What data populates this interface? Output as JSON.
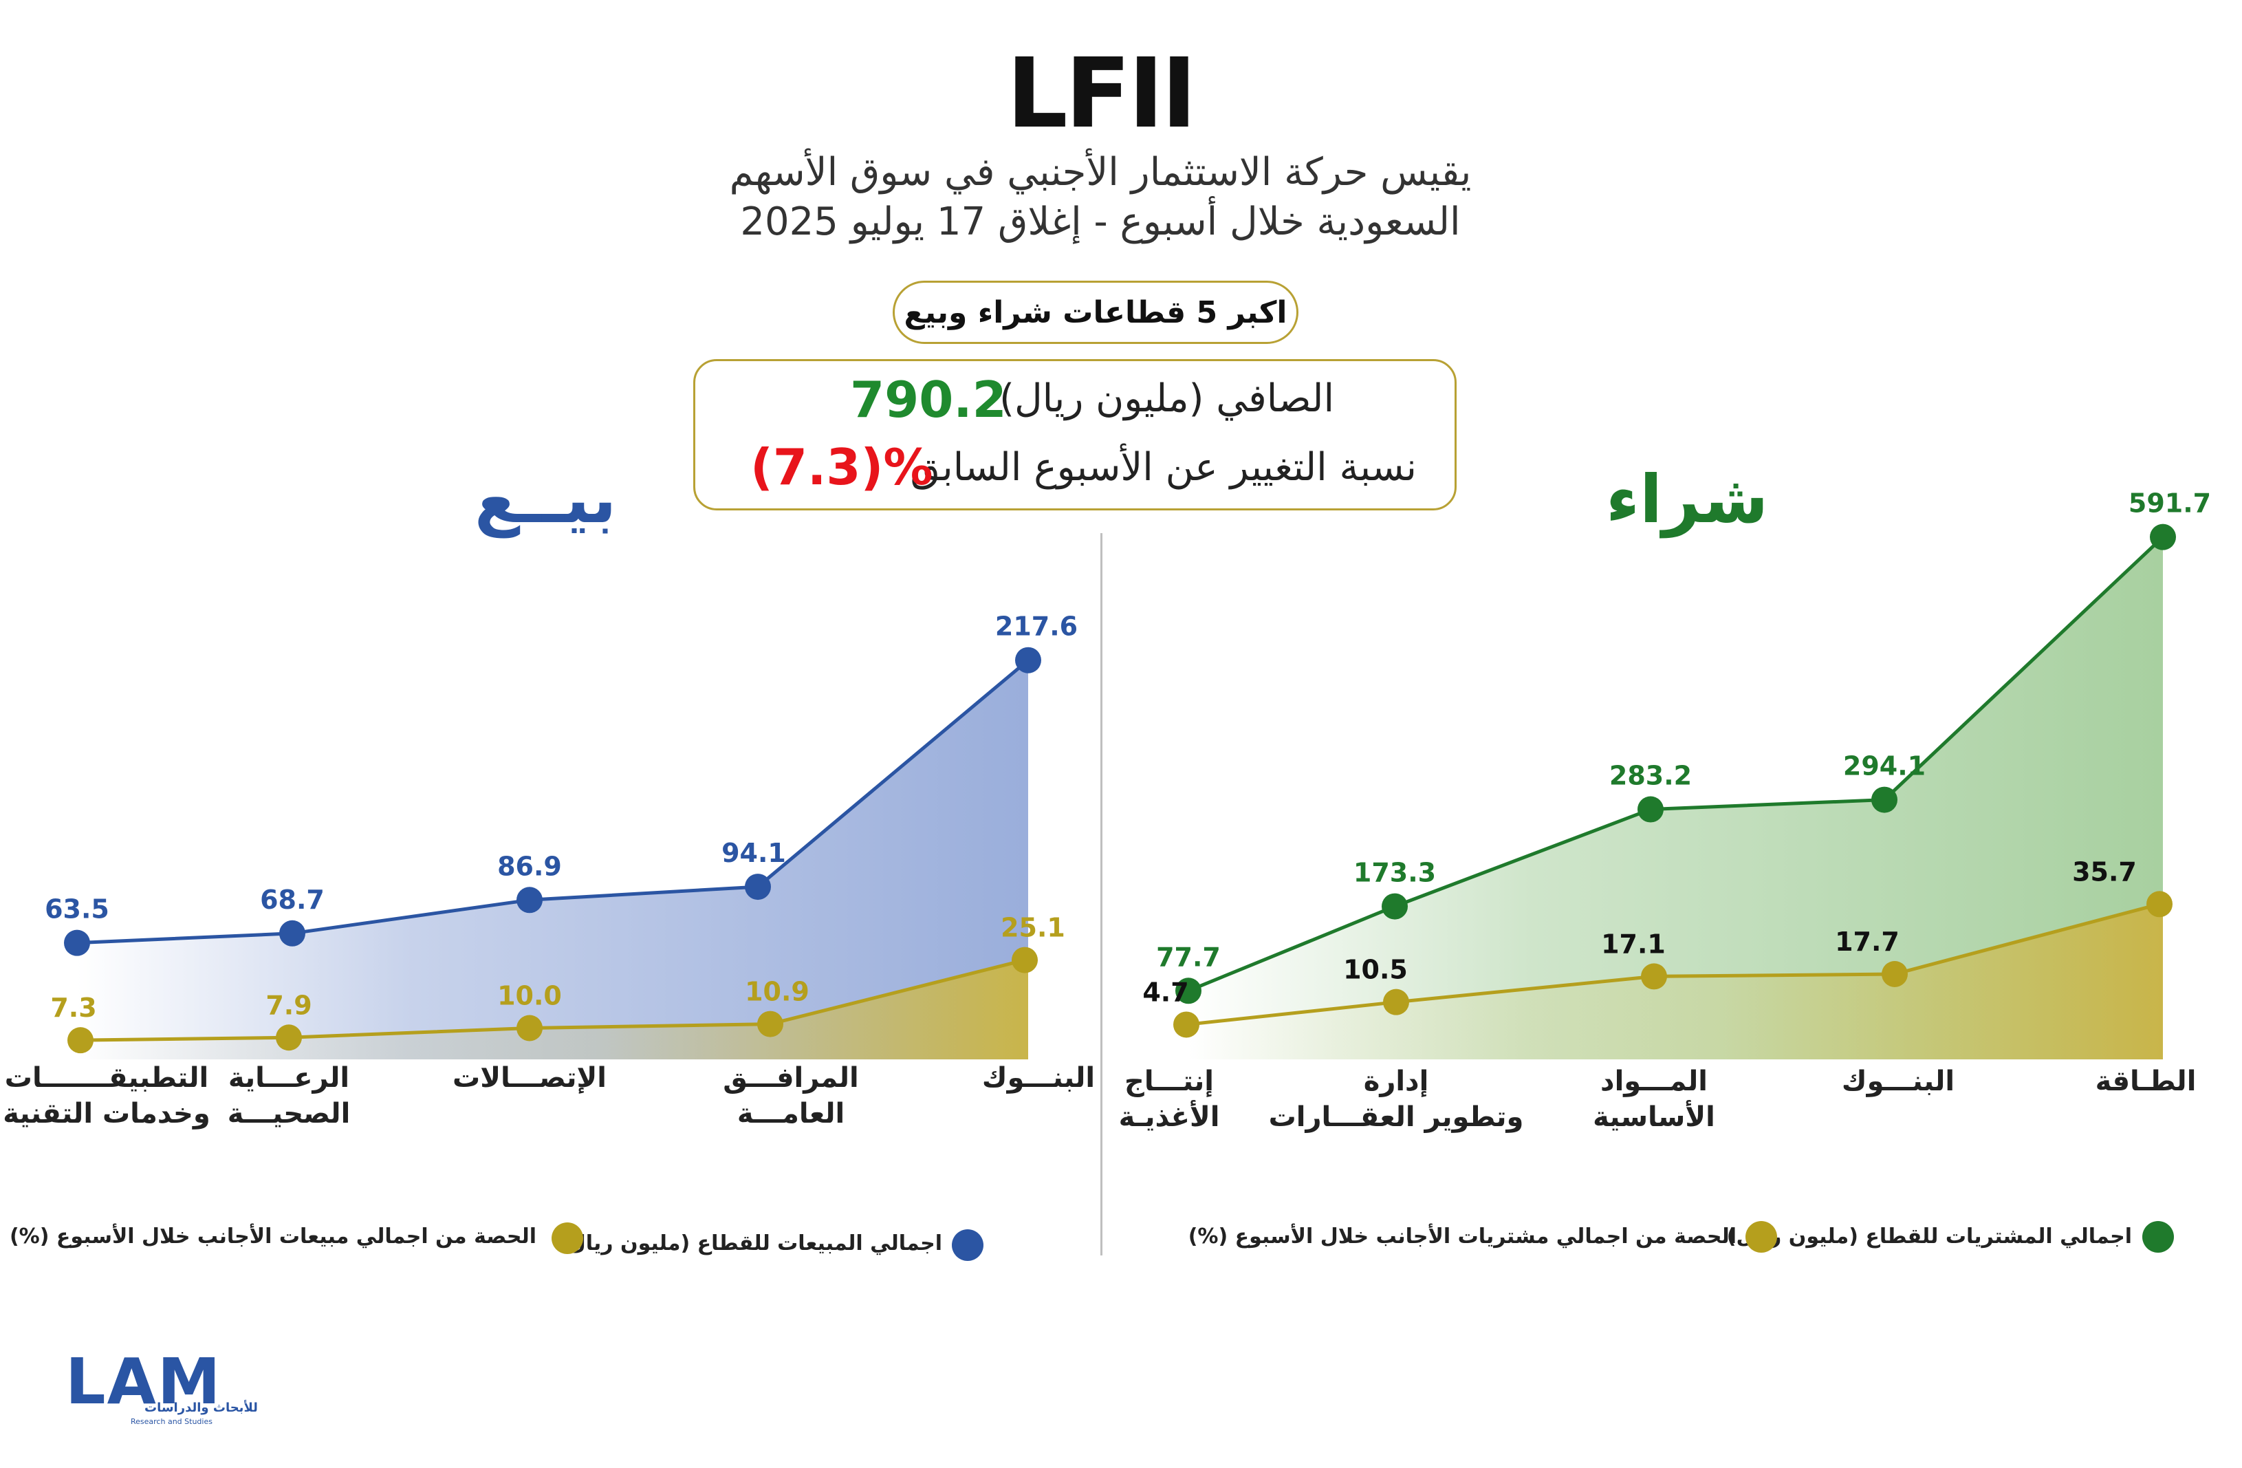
{
  "header": {
    "title": "LFII",
    "subtitle_line1": "يقيس حركة الاستثمار الأجنبي في سوق الأسهم",
    "subtitle_line2": "السعودية خلال أسبوع - إغلاق 17 يوليو 2025"
  },
  "pill_label": "اكبر 5 قطاعات شراء وبيع",
  "summary": {
    "net_label": "الصافي (مليون ريال)",
    "net_value": "790.2",
    "change_label": "نسبة التغيير عن الأسبوع السابق",
    "change_value": "(7.3)%"
  },
  "colors": {
    "buy": "#1f7a2c",
    "sell": "#2b55a3",
    "share": "#b59f1d",
    "change_negative": "#e8141b",
    "box_border": "#b8a134"
  },
  "logo": {
    "text": "LAM",
    "arabic": "للأبحاث والدراسات",
    "english": "Research and Studies"
  },
  "chart_data": [
    {
      "type": "area",
      "title": "بيــع",
      "categories": [
        "التطبيقـــــــات وخدمات التقنية",
        "الرعـــاية الصحيـــة",
        "الإتصـــالات",
        "المرافـــق العامـــة",
        "البنـــوك"
      ],
      "series": [
        {
          "name": "اجمالي المبيعات للقطاع (مليون ريال)",
          "values": [
            63.5,
            68.7,
            86.9,
            94.1,
            217.6
          ],
          "labels": [
            "63.5",
            "68.7",
            "86.9",
            "94.1",
            "217.6"
          ],
          "color": "#2b55a3"
        },
        {
          "name": "الحصة من اجمالي مبيعات الأجانب خلال الأسبوع (%)",
          "values": [
            7.3,
            7.9,
            10.0,
            10.9,
            25.1
          ],
          "labels": [
            "7.3",
            "7.9",
            "10.0",
            "10.9",
            "25.1"
          ],
          "color": "#b59f1d"
        }
      ],
      "legend": "bottom"
    },
    {
      "type": "area",
      "title": "شراء",
      "categories": [
        "إنتـــاج الأغذيـة",
        "إدارة وتطوير العقـــارات",
        "المـــواد الأساسية",
        "البنـــوك",
        "الطـاقة"
      ],
      "series": [
        {
          "name": "اجمالي المشتريات للقطاع (مليون ريال)",
          "values": [
            77.7,
            173.3,
            283.2,
            294.1,
            591.7
          ],
          "labels": [
            "77.7",
            "173.3",
            "283.2",
            "294.1",
            "591.7"
          ],
          "color": "#1f7a2c"
        },
        {
          "name": "الحصة من اجمالي مشتريات الأجانب خلال الأسبوع (%)",
          "values": [
            4.7,
            10.5,
            17.1,
            17.7,
            35.7
          ],
          "labels": [
            "4.7",
            "10.5",
            "17.1",
            "17.7",
            "35.7"
          ],
          "color": "#b59f1d"
        }
      ],
      "legend": "bottom"
    }
  ]
}
